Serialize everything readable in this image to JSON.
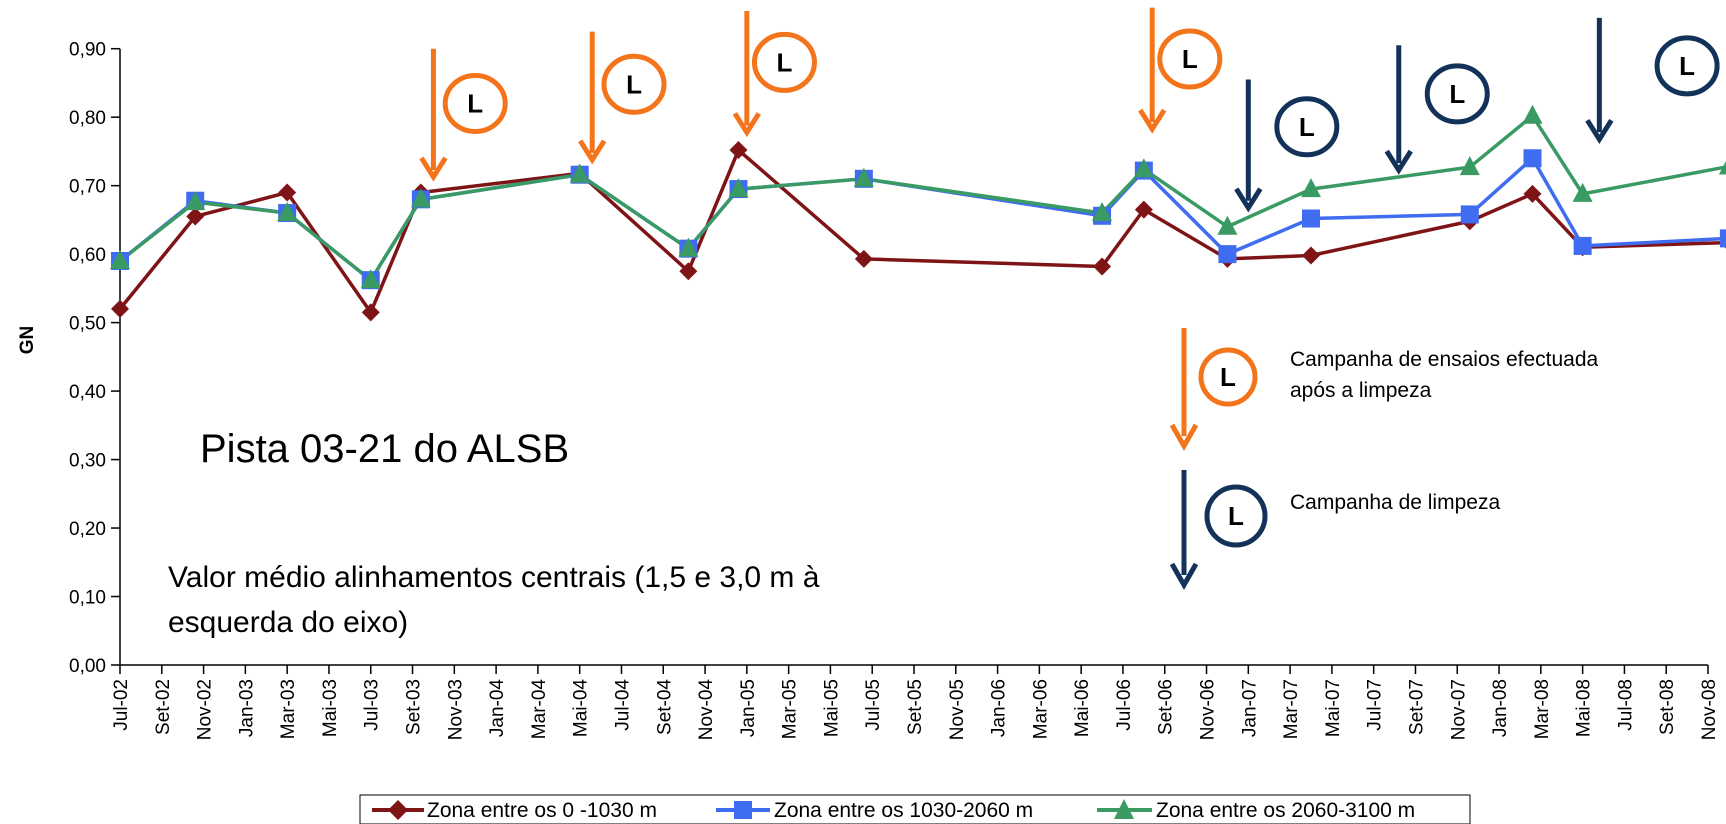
{
  "chart_data": {
    "type": "line",
    "ylabel": "GN",
    "ylim": [
      0,
      0.9
    ],
    "yticks": [
      "0,00",
      "0,10",
      "0,20",
      "0,30",
      "0,40",
      "0,50",
      "0,60",
      "0,70",
      "0,80",
      "0,90"
    ],
    "categories": [
      "Jul-02",
      "Set-02",
      "Nov-02",
      "Jan-03",
      "Mar-03",
      "Mai-03",
      "Jul-03",
      "Set-03",
      "Nov-03",
      "Jan-04",
      "Mar-04",
      "Mai-04",
      "Jul-04",
      "Set-04",
      "Nov-04",
      "Jan-05",
      "Mar-05",
      "Mai-05",
      "Jul-05",
      "Set-05",
      "Nov-05",
      "Jan-06",
      "Mar-06",
      "Mai-06",
      "Jul-06",
      "Set-06",
      "Nov-06",
      "Jan-07",
      "Mar-07",
      "Mai-07",
      "Jul-07",
      "Set-07",
      "Nov-07",
      "Jan-08",
      "Mar-08",
      "Mai-08",
      "Jul-08",
      "Set-08",
      "Nov-08"
    ],
    "series": [
      {
        "name": "Zona entre os 0 -1030 m",
        "color": "#7f1416",
        "marker": "diamond",
        "points": [
          [
            0.0,
            0.52
          ],
          [
            1.8,
            0.655
          ],
          [
            4.0,
            0.69
          ],
          [
            6.0,
            0.515
          ],
          [
            7.2,
            0.69
          ],
          [
            11.0,
            0.718
          ],
          [
            13.6,
            0.575
          ],
          [
            14.8,
            0.752
          ],
          [
            17.8,
            0.593
          ],
          [
            23.5,
            0.582
          ],
          [
            24.5,
            0.665
          ],
          [
            26.5,
            0.593
          ],
          [
            28.5,
            0.598
          ],
          [
            32.3,
            0.648
          ],
          [
            33.8,
            0.688
          ],
          [
            35.0,
            0.61
          ],
          [
            38.5,
            0.617
          ]
        ]
      },
      {
        "name": "Zona entre os 1030-2060 m",
        "color": "#3f6cf0",
        "marker": "square",
        "points": [
          [
            0.0,
            0.59
          ],
          [
            1.8,
            0.678
          ],
          [
            4.0,
            0.66
          ],
          [
            6.0,
            0.562
          ],
          [
            7.2,
            0.68
          ],
          [
            11.0,
            0.716
          ],
          [
            13.6,
            0.608
          ],
          [
            14.8,
            0.695
          ],
          [
            17.8,
            0.71
          ],
          [
            23.5,
            0.656
          ],
          [
            24.5,
            0.722
          ],
          [
            26.5,
            0.6
          ],
          [
            28.5,
            0.652
          ],
          [
            32.3,
            0.658
          ],
          [
            33.8,
            0.74
          ],
          [
            35.0,
            0.612
          ],
          [
            38.5,
            0.623
          ]
        ]
      },
      {
        "name": "Zona entre os 2060-3100 m",
        "color": "#3a9a64",
        "marker": "triangle",
        "points": [
          [
            0.0,
            0.59
          ],
          [
            1.8,
            0.676
          ],
          [
            4.0,
            0.66
          ],
          [
            6.0,
            0.562
          ],
          [
            7.2,
            0.68
          ],
          [
            11.0,
            0.716
          ],
          [
            13.6,
            0.608
          ],
          [
            14.8,
            0.695
          ],
          [
            17.8,
            0.71
          ],
          [
            23.5,
            0.66
          ],
          [
            24.5,
            0.724
          ],
          [
            26.5,
            0.64
          ],
          [
            28.5,
            0.695
          ],
          [
            32.3,
            0.727
          ],
          [
            33.8,
            0.802
          ],
          [
            35.0,
            0.688
          ],
          [
            38.5,
            0.728
          ]
        ]
      }
    ],
    "arrows": [
      {
        "x": 7.5,
        "y_top": 0.9,
        "y_bot": 0.72,
        "type": "orange"
      },
      {
        "x": 11.3,
        "y_top": 0.925,
        "y_bot": 0.745,
        "type": "orange"
      },
      {
        "x": 15.0,
        "y_top": 0.955,
        "y_bot": 0.785,
        "type": "orange"
      },
      {
        "x": 24.7,
        "y_top": 0.96,
        "y_bot": 0.79,
        "type": "orange"
      },
      {
        "x": 27.0,
        "y_top": 0.855,
        "y_bot": 0.675,
        "type": "navy"
      },
      {
        "x": 30.6,
        "y_top": 0.905,
        "y_bot": 0.73,
        "type": "navy"
      },
      {
        "x": 35.4,
        "y_top": 0.945,
        "y_bot": 0.775,
        "type": "navy"
      }
    ],
    "badges": [
      {
        "x": 8.5,
        "y": 0.82,
        "type": "orange"
      },
      {
        "x": 12.3,
        "y": 0.848,
        "type": "orange"
      },
      {
        "x": 15.9,
        "y": 0.88,
        "type": "orange"
      },
      {
        "x": 25.6,
        "y": 0.885,
        "type": "orange"
      },
      {
        "x": 28.4,
        "y": 0.786,
        "type": "navy"
      },
      {
        "x": 32.0,
        "y": 0.834,
        "type": "navy"
      },
      {
        "x": 37.5,
        "y": 0.875,
        "type": "navy"
      }
    ],
    "badge_letter": "L",
    "title_annotation": "Pista 03-21 do ALSB",
    "subtitle_annotation": [
      "Valor médio alinhamentos centrais (1,5 e 3,0 m à",
      "esquerda do eixo)"
    ],
    "key_notes": [
      {
        "type": "orange",
        "lines": [
          "Campanha de ensaios efectuada",
          "após a limpeza"
        ]
      },
      {
        "type": "navy",
        "lines": [
          "Campanha de limpeza"
        ]
      }
    ],
    "colors": {
      "orange": "#f4741c",
      "navy": "#13325a",
      "axis": "#000000"
    }
  }
}
